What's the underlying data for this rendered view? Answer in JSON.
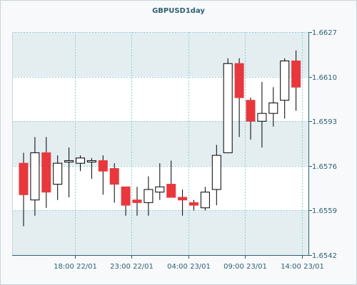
{
  "chart_data": {
    "type": "candlestick",
    "title": "GBPUSD1day",
    "xlabel": "",
    "ylabel": "",
    "ylim": [
      1.6542,
      1.6627
    ],
    "y_ticks": [
      "1.6542",
      "1.6559",
      "1.6576",
      "1.6593",
      "1.6610",
      "1.6627"
    ],
    "x_ticks": [
      "18:00 22/01",
      "23:00 22/01",
      "04:00 23/01",
      "09:00 23/01",
      "14:00 23/01"
    ],
    "x_tick_candle_index": [
      4.5,
      9.5,
      14.5,
      19.5,
      24.5
    ],
    "grid": true,
    "colors": {
      "up": "#ffffff",
      "down": "#e8383d",
      "wick": "#000000",
      "grid": "#8fd0d8",
      "band": "#e4edf0",
      "axis": "#2f5f74"
    },
    "candles": [
      {
        "open": 1.6577,
        "high": 1.6581,
        "low": 1.6553,
        "close": 1.6565
      },
      {
        "open": 1.6563,
        "high": 1.6587,
        "low": 1.6557,
        "close": 1.6581
      },
      {
        "open": 1.6581,
        "high": 1.6587,
        "low": 1.656,
        "close": 1.6566
      },
      {
        "open": 1.6569,
        "high": 1.658,
        "low": 1.6563,
        "close": 1.6577
      },
      {
        "open": 1.6578,
        "high": 1.6583,
        "low": 1.6564,
        "close": 1.6578
      },
      {
        "open": 1.6577,
        "high": 1.658,
        "low": 1.6574,
        "close": 1.6579
      },
      {
        "open": 1.6578,
        "high": 1.6579,
        "low": 1.6571,
        "close": 1.6578
      },
      {
        "open": 1.6578,
        "high": 1.658,
        "low": 1.6565,
        "close": 1.6574
      },
      {
        "open": 1.6575,
        "high": 1.6577,
        "low": 1.6562,
        "close": 1.6569
      },
      {
        "open": 1.6568,
        "high": 1.6568,
        "low": 1.6557,
        "close": 1.6561
      },
      {
        "open": 1.6563,
        "high": 1.6568,
        "low": 1.6557,
        "close": 1.6562
      },
      {
        "open": 1.6562,
        "high": 1.6572,
        "low": 1.6557,
        "close": 1.6567
      },
      {
        "open": 1.6566,
        "high": 1.6577,
        "low": 1.6563,
        "close": 1.6568
      },
      {
        "open": 1.6569,
        "high": 1.6578,
        "low": 1.6564,
        "close": 1.6564
      },
      {
        "open": 1.6564,
        "high": 1.6567,
        "low": 1.6557,
        "close": 1.6563
      },
      {
        "open": 1.6562,
        "high": 1.6563,
        "low": 1.6559,
        "close": 1.6561
      },
      {
        "open": 1.656,
        "high": 1.6568,
        "low": 1.6559,
        "close": 1.6566
      },
      {
        "open": 1.6567,
        "high": 1.6584,
        "low": 1.6561,
        "close": 1.658
      },
      {
        "open": 1.6581,
        "high": 1.6617,
        "low": 1.6581,
        "close": 1.6615
      },
      {
        "open": 1.6615,
        "high": 1.6617,
        "low": 1.6587,
        "close": 1.6602
      },
      {
        "open": 1.6601,
        "high": 1.6602,
        "low": 1.6586,
        "close": 1.6593
      },
      {
        "open": 1.6593,
        "high": 1.6608,
        "low": 1.6583,
        "close": 1.6596
      },
      {
        "open": 1.6596,
        "high": 1.6606,
        "low": 1.6591,
        "close": 1.66
      },
      {
        "open": 1.6601,
        "high": 1.6617,
        "low": 1.6594,
        "close": 1.6616
      },
      {
        "open": 1.6616,
        "high": 1.662,
        "low": 1.6597,
        "close": 1.6606
      }
    ]
  }
}
